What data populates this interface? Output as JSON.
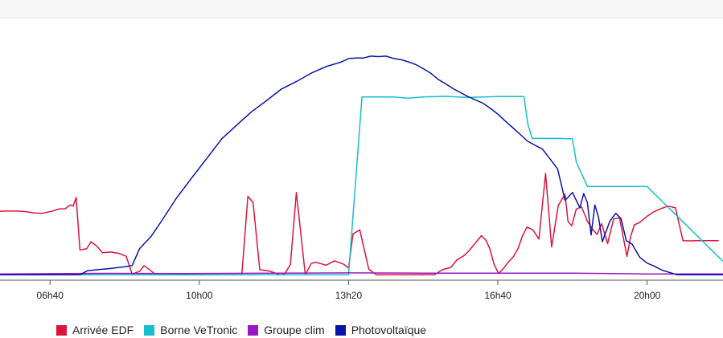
{
  "chart_data": {
    "type": "line",
    "title": "",
    "xlabel": "",
    "ylabel": "",
    "x_ticks": [
      "06h40",
      "10h00",
      "13h20",
      "16h40",
      "20h00"
    ],
    "x_ticks_min": [
      400,
      600,
      800,
      1000,
      1200
    ],
    "xlim": [
      320,
      1320
    ],
    "ylim": [
      0,
      1
    ],
    "grid": false,
    "legend_position": "bottom-left",
    "series": [
      {
        "name": "Arrivée EDF",
        "color": "#dc143c",
        "x": [
          320,
          332,
          343,
          355,
          367,
          378,
          390,
          402,
          413,
          420,
          427,
          431,
          435,
          440,
          449,
          455,
          463,
          470,
          481,
          492,
          502,
          510,
          520,
          526,
          542,
          552,
          555,
          566,
          572,
          581,
          587,
          594,
          606,
          617,
          622,
          629,
          640,
          648,
          657,
          665,
          672,
          681,
          695,
          708,
          714,
          722,
          730,
          742,
          750,
          756,
          770,
          781,
          793,
          800,
          806,
          815,
          827,
          837,
          843,
          853,
          864,
          869,
          878,
          888,
          894,
          902,
          915,
          926,
          937,
          945,
          955,
          962,
          970,
          978,
          984,
          989,
          995,
          1001,
          1008,
          1014,
          1021,
          1027,
          1033,
          1039,
          1047,
          1055,
          1064,
          1072,
          1081,
          1090,
          1094,
          1099,
          1105,
          1112,
          1120,
          1127,
          1133,
          1139,
          1147,
          1155,
          1163,
          1173,
          1178,
          1183,
          1190,
          1200,
          1209,
          1218,
          1228,
          1238,
          1248,
          1258,
          1268,
          1275,
          1282,
          1288,
          1296
        ],
        "values": [
          0.282,
          0.282,
          0.283,
          0.283,
          0.281,
          0.275,
          0.273,
          0.282,
          0.293,
          0.293,
          0.31,
          0.305,
          0.343,
          0.112,
          0.117,
          0.148,
          0.128,
          0.1,
          0.103,
          0.097,
          0.084,
          0.006,
          0.018,
          0.043,
          0.003,
          0.003,
          0.003,
          0.003,
          0.003,
          0.003,
          0.003,
          0.003,
          0.003,
          0.003,
          0.003,
          0.003,
          0.003,
          0.003,
          0.003,
          0.348,
          0.32,
          0.025,
          0.018,
          0.003,
          0.005,
          0.048,
          0.365,
          0.003,
          0.052,
          0.058,
          0.045,
          0.064,
          0.05,
          0.033,
          0.183,
          0.2,
          0.028,
          0.003,
          0.003,
          0.003,
          0.003,
          0.003,
          0.003,
          0.003,
          0.003,
          0.003,
          0.003,
          0.025,
          0.035,
          0.068,
          0.088,
          0.111,
          0.143,
          0.175,
          0.155,
          0.12,
          0.048,
          0.008,
          0.033,
          0.058,
          0.083,
          0.118,
          0.174,
          0.213,
          0.2,
          0.16,
          0.449,
          0.125,
          0.308,
          0.357,
          0.237,
          0.218,
          0.292,
          0.302,
          0.238,
          0.203,
          0.18,
          0.228,
          0.14,
          0.248,
          0.254,
          0.083,
          0.172,
          0.223,
          0.233,
          0.26,
          0.28,
          0.293,
          0.305,
          0.297,
          0.153,
          0.152,
          0.153,
          0.153,
          0.153,
          0.153,
          0.153
        ]
      },
      {
        "name": "Borne VeTronic",
        "color": "#17becf",
        "x": [
          320,
          440,
          600,
          800,
          818,
          836,
          860,
          880,
          900,
          930,
          960,
          1000,
          1020,
          1026,
          1035,
          1040,
          1046,
          1055,
          1080,
          1100,
          1105,
          1112,
          1120,
          1140,
          1152,
          1160,
          1176,
          1180,
          1185,
          1190,
          1195,
          1200,
          1320
        ],
        "values": [
          0.003,
          0.003,
          0.002,
          0.003,
          0.785,
          0.785,
          0.785,
          0.78,
          0.785,
          0.788,
          0.783,
          0.787,
          0.787,
          0.787,
          0.787,
          0.668,
          0.603,
          0.603,
          0.603,
          0.601,
          0.5,
          0.449,
          0.391,
          0.391,
          0.391,
          0.391,
          0.391,
          0.391,
          0.391,
          0.391,
          0.391,
          0.391,
          0.003
        ]
      },
      {
        "name": "Groupe clim",
        "color": "#9a17c2",
        "x": [
          320,
          480,
          580,
          700,
          800,
          900,
          1000,
          1100,
          1200,
          1320
        ],
        "values": [
          0.006,
          0.009,
          0.008,
          0.01,
          0.011,
          0.01,
          0.01,
          0.01,
          0.006,
          0.006
        ]
      },
      {
        "name": "Photovoltaïque",
        "color": "#0a14a8",
        "x": [
          320,
          440,
          450,
          460,
          480,
          500,
          510,
          520,
          535,
          550,
          570,
          590,
          610,
          630,
          650,
          670,
          690,
          710,
          730,
          750,
          770,
          790,
          800,
          810,
          820,
          830,
          840,
          850,
          860,
          870,
          880,
          890,
          900,
          910,
          920,
          930,
          940,
          960,
          980,
          990,
          1000,
          1010,
          1020,
          1030,
          1040,
          1060,
          1080,
          1090,
          1100,
          1110,
          1115,
          1120,
          1125,
          1130,
          1135,
          1140,
          1150,
          1158,
          1165,
          1172,
          1180,
          1190,
          1200,
          1210,
          1220,
          1240,
          1255,
          1265,
          1275,
          1285,
          1320
        ],
        "values": [
          0.003,
          0.003,
          0.02,
          0.024,
          0.03,
          0.038,
          0.043,
          0.118,
          0.17,
          0.242,
          0.343,
          0.43,
          0.515,
          0.601,
          0.661,
          0.72,
          0.769,
          0.82,
          0.853,
          0.89,
          0.919,
          0.939,
          0.954,
          0.957,
          0.957,
          0.965,
          0.963,
          0.965,
          0.955,
          0.95,
          0.94,
          0.928,
          0.91,
          0.89,
          0.863,
          0.843,
          0.822,
          0.787,
          0.758,
          0.735,
          0.71,
          0.679,
          0.65,
          0.62,
          0.59,
          0.555,
          0.469,
          0.33,
          0.365,
          0.297,
          0.36,
          0.32,
          0.178,
          0.31,
          0.254,
          0.148,
          0.238,
          0.273,
          0.25,
          0.153,
          0.137,
          0.08,
          0.054,
          0.04,
          0.023,
          0.003,
          0.003,
          0.003,
          0.003,
          0.003,
          0.003
        ]
      }
    ]
  }
}
